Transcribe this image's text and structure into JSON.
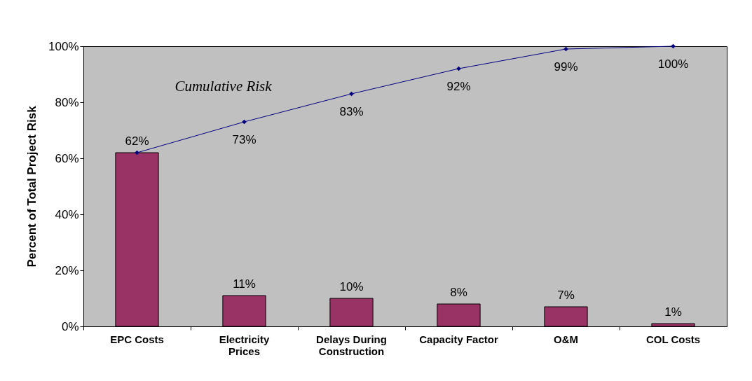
{
  "chart_data": {
    "type": "bar",
    "ylabel": "Percent of Total Project Risk",
    "categories": [
      "EPC Costs",
      "Electricity Prices",
      "Delays During Construction",
      "Capacity Factor",
      "O&M",
      "COL Costs"
    ],
    "series": [
      {
        "color": "#993366",
        "values": [
          62,
          11,
          10,
          8,
          7,
          1
        ],
        "value_labels": [
          "62%",
          "11%",
          "10%",
          "8%",
          "7%",
          "1%"
        ]
      },
      {
        "type": "line",
        "name": "Cumulative Risk",
        "color": "#000080",
        "values": [
          62,
          73,
          83,
          92,
          99,
          100
        ],
        "value_labels": [
          null,
          "73%",
          "83%",
          "92%",
          "99%",
          "100%"
        ]
      }
    ],
    "ylim": [
      0,
      100
    ],
    "yticks": [
      {
        "value": 0,
        "label": "0%"
      },
      {
        "value": 20,
        "label": "20%"
      },
      {
        "value": 40,
        "label": "40%"
      },
      {
        "value": 60,
        "label": "60%"
      },
      {
        "value": 80,
        "label": "80%"
      },
      {
        "value": 100,
        "label": "100%"
      }
    ],
    "grid": false,
    "marker": "diamond",
    "line_style": "solid"
  }
}
